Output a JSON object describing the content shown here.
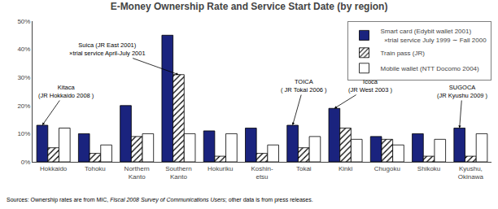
{
  "chart_data": {
    "type": "bar",
    "title": "E-Money Ownership Rate and Service Start Date (by region)",
    "categories": [
      "Hokkaido",
      "Tohoku",
      "Northern\nKanto",
      "Southern\nKanto",
      "Hokuriku",
      "Koshin-\netsu",
      "Tokai",
      "Kinki",
      "Chugoku",
      "Shikoku",
      "Kyushu,\nOkinawa"
    ],
    "series": [
      {
        "name": "Smart card (Edybit wallet 2001)\n  ×trial service July 1999 ∼ Fall 2000",
        "color": "#1a237e",
        "values": [
          13,
          10,
          20,
          45,
          11,
          12,
          13,
          19,
          9,
          10,
          12
        ]
      },
      {
        "name": "Train pass (JR)",
        "color": "#ffffff",
        "marker": "hatch",
        "values": [
          5,
          3,
          9,
          31,
          2,
          3,
          5,
          12,
          8,
          2,
          2
        ]
      },
      {
        "name": "Mobile wallet (NTT Docomo 2004)",
        "color": "#ffffff",
        "values": [
          12,
          6,
          10,
          10,
          10,
          6,
          9,
          8,
          6,
          8,
          10
        ]
      }
    ],
    "ylim": [
      0,
      50
    ],
    "yticks": [
      {
        "value": 0,
        "label": "0%"
      },
      {
        "value": 10,
        "label": "10%"
      },
      {
        "value": 20,
        "label": "20%"
      },
      {
        "value": 30,
        "label": "30%"
      },
      {
        "value": 40,
        "label": "40%"
      },
      {
        "value": 50,
        "label": "50%"
      }
    ],
    "grid": false,
    "legend": "upper right",
    "annotations": [
      {
        "text": "Kitaca\n(JR Hokkaido 2008 )",
        "category": "Hokkaido",
        "series": "Smart card (Edybit wallet 2001)\n  ×trial service July 1999 ∼ Fall 2000"
      },
      {
        "text": "Suica (JR East 2001)\n×trial service April-July 2001",
        "category": "Southern\nKanto",
        "series": "Train pass (JR)"
      },
      {
        "text": "TOICA\n( JR Tokai 2006 )",
        "category": "Tokai",
        "series": "Smart card (Edybit wallet 2001)\n  ×trial service July 1999 ∼ Fall 2000"
      },
      {
        "text": "Icoca\n(JR West 2003 )",
        "category": "Kinki",
        "series": "Smart card (Edybit wallet 2001)\n  ×trial service July 1999 ∼ Fall 2000"
      },
      {
        "text": "SUGOCA\n(JR Kyushu 2009 )",
        "category": "Kyushu,\nOkinawa",
        "series": "Smart card (Edybit wallet 2001)\n  ×trial service July 1999 ∼ Fall 2000"
      }
    ],
    "source": [
      {
        "text": "Sources: Ownership rates are from MIC, ",
        "italic": false
      },
      {
        "text": "Fiscal 2008 Survey of Communications Users",
        "italic": true
      },
      {
        "text": "; other data is from press releases.",
        "italic": false
      }
    ]
  }
}
